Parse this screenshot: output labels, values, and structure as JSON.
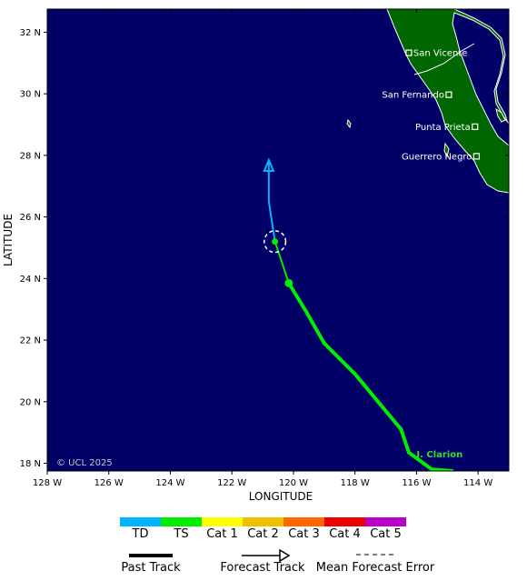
{
  "map": {
    "lon_range": [
      -128,
      -113
    ],
    "lat_range": [
      17.75,
      32.75
    ],
    "ocean_color": "#000066",
    "land_color": "#006600",
    "x_ticks": [
      {
        "value": -128,
        "label": "128 W"
      },
      {
        "value": -126,
        "label": "126 W"
      },
      {
        "value": -124,
        "label": "124 W"
      },
      {
        "value": -122,
        "label": "122 W"
      },
      {
        "value": -120,
        "label": "120 W"
      },
      {
        "value": -118,
        "label": "118 W"
      },
      {
        "value": -116,
        "label": "116 W"
      },
      {
        "value": -114,
        "label": "114 W"
      }
    ],
    "y_ticks": [
      {
        "value": 32,
        "label": "32 N"
      },
      {
        "value": 30,
        "label": "30 N"
      },
      {
        "value": 28,
        "label": "28 N"
      },
      {
        "value": 26,
        "label": "26 N"
      },
      {
        "value": 24,
        "label": "24 N"
      },
      {
        "value": 22,
        "label": "22 N"
      },
      {
        "value": 20,
        "label": "20 N"
      },
      {
        "value": 18,
        "label": "18 N"
      }
    ],
    "xlabel": "LONGITUDE",
    "ylabel": "LATITUDE",
    "copyright": "© UCL 2025",
    "places": [
      {
        "name": "San Vicente",
        "lon": -116.25,
        "lat": 31.33,
        "label_side": "right"
      },
      {
        "name": "San Fernando",
        "lon": -114.95,
        "lat": 29.97,
        "label_side": "left"
      },
      {
        "name": "Punta Prieta",
        "lon": -114.1,
        "lat": 28.93,
        "label_side": "left"
      },
      {
        "name": "Guerrero Negro",
        "lon": -114.05,
        "lat": 27.97,
        "label_side": "left"
      }
    ],
    "storm": {
      "name": "I. Clarion",
      "label_lon": -116.0,
      "label_lat": 18.2,
      "past_track": [
        {
          "lon": -114.8,
          "lat": 17.75
        },
        {
          "lon": -115.5,
          "lat": 17.8
        },
        {
          "lon": -116.25,
          "lat": 18.35
        },
        {
          "lon": -116.5,
          "lat": 19.1
        },
        {
          "lon": -118.0,
          "lat": 20.9
        },
        {
          "lon": -119.0,
          "lat": 21.9
        },
        {
          "lon": -119.6,
          "lat": 22.95
        },
        {
          "lon": -120.15,
          "lat": 23.85
        }
      ],
      "forecast_track": [
        {
          "lon": -120.15,
          "lat": 23.85,
          "category": "TS"
        },
        {
          "lon": -120.6,
          "lat": 25.2,
          "category": "TS"
        },
        {
          "lon": -120.8,
          "lat": 26.5,
          "category": "TD"
        },
        {
          "lon": -120.8,
          "lat": 27.85,
          "category": "TD"
        }
      ],
      "current_position": {
        "lon": -120.15,
        "lat": 23.85
      },
      "forecast_point": {
        "lon": -120.6,
        "lat": 25.2
      },
      "error_circle_radius_deg": 0.35
    }
  },
  "legend": {
    "categories": [
      {
        "label": "TD",
        "color": "#00b4ff"
      },
      {
        "label": "TS",
        "color": "#00ee00"
      },
      {
        "label": "Cat 1",
        "color": "#ffff00"
      },
      {
        "label": "Cat 2",
        "color": "#f0c000"
      },
      {
        "label": "Cat 3",
        "color": "#ff6600"
      },
      {
        "label": "Cat 4",
        "color": "#ee0000"
      },
      {
        "label": "Cat 5",
        "color": "#bb00cc"
      }
    ],
    "past_track_label": "Past Track",
    "forecast_track_label": "Forecast Track",
    "error_label": "Mean Forecast Error"
  }
}
